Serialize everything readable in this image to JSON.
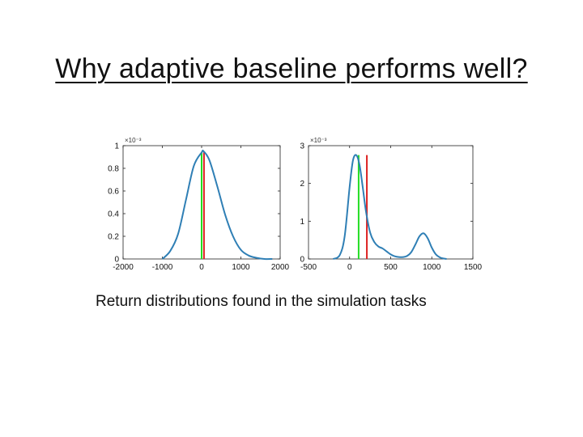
{
  "slide": {
    "title": "Why adaptive baseline performs well?",
    "caption": "Return distributions found in the simulation tasks"
  },
  "chart_data": [
    {
      "type": "line",
      "xlim": [
        -2000,
        2000
      ],
      "ylim": [
        0,
        1
      ],
      "y_multiplier": "×10⁻³",
      "xticks": [
        -2000,
        -1000,
        0,
        1000,
        2000
      ],
      "yticks": [
        0,
        0.2,
        0.4,
        0.6,
        0.8,
        1
      ],
      "grid": false,
      "colors": {
        "curve": "#2f7fb5",
        "green_line": "#22dd22",
        "red_line": "#dd2222"
      },
      "series": [
        {
          "x": [
            -1000,
            -800,
            -600,
            -400,
            -200,
            0,
            50,
            200,
            400,
            600,
            800,
            1000,
            1200,
            1400,
            1600,
            1800
          ],
          "y": [
            0.0,
            0.07,
            0.22,
            0.52,
            0.82,
            0.94,
            0.95,
            0.87,
            0.64,
            0.39,
            0.2,
            0.08,
            0.03,
            0.01,
            0.0,
            0.0
          ]
        }
      ],
      "vlines": [
        {
          "x": 0,
          "y": 0.94,
          "color": "#22dd22"
        },
        {
          "x": 60,
          "y": 0.94,
          "color": "#dd2222"
        }
      ]
    },
    {
      "type": "line",
      "xlim": [
        -500,
        1500
      ],
      "ylim": [
        0,
        3
      ],
      "y_multiplier": "×10⁻³",
      "xticks": [
        -500,
        0,
        500,
        1000,
        1500
      ],
      "yticks": [
        0,
        1,
        2,
        3
      ],
      "grid": false,
      "colors": {
        "curve": "#2f7fb5",
        "green_line": "#22dd22",
        "red_line": "#dd2222"
      },
      "series": [
        {
          "x": [
            -200,
            -120,
            -60,
            0,
            40,
            80,
            120,
            160,
            200,
            250,
            300,
            350,
            400,
            450,
            500,
            550,
            600,
            650,
            700,
            750,
            800,
            850,
            900,
            950,
            1000,
            1050,
            1100,
            1150,
            1180
          ],
          "y": [
            0.0,
            0.1,
            0.6,
            1.9,
            2.6,
            2.75,
            2.5,
            1.9,
            1.25,
            0.7,
            0.45,
            0.33,
            0.28,
            0.2,
            0.12,
            0.07,
            0.05,
            0.05,
            0.08,
            0.18,
            0.38,
            0.6,
            0.68,
            0.55,
            0.3,
            0.12,
            0.04,
            0.01,
            0.0
          ]
        }
      ],
      "vlines": [
        {
          "x": 110,
          "y": 2.75,
          "color": "#22dd22"
        },
        {
          "x": 210,
          "y": 2.75,
          "color": "#dd2222"
        }
      ]
    }
  ]
}
